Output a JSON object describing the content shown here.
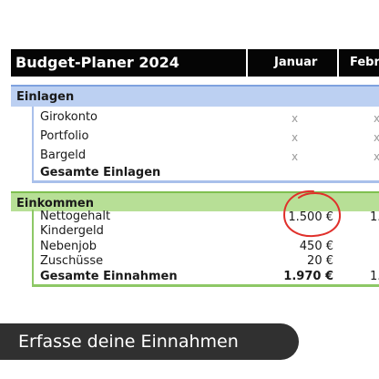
{
  "header": {
    "title": "Budget-Planer 2024",
    "months": [
      "Januar",
      "Febr"
    ]
  },
  "einlagen": {
    "label": "Einlagen",
    "rows": [
      {
        "label": "Girokonto",
        "january": "x",
        "february": "x"
      },
      {
        "label": "Portfolio",
        "january": "x",
        "february": "x"
      },
      {
        "label": "Bargeld",
        "january": "x",
        "february": "x"
      }
    ],
    "total_label": "Gesamte Einlagen"
  },
  "einkommen": {
    "label": "Einkommen",
    "rows": [
      {
        "label": "Nettogehalt",
        "january": "1.500 €",
        "february": "1."
      },
      {
        "label": "Kindergeld",
        "january": "",
        "february": ""
      },
      {
        "label": "Nebenjob",
        "january": "450 €",
        "february": ""
      },
      {
        "label": "Zuschüsse",
        "january": "20 €",
        "february": ""
      }
    ],
    "total_label": "Gesamte Einnahmen",
    "total_january": "1.970 €",
    "total_february": "1."
  },
  "banner": {
    "text": "Erfasse deine Einnahmen"
  },
  "colors": {
    "header_bg": "#050505",
    "einlagen_bg": "#bcd0f2",
    "einkommen_bg": "#b7df96",
    "highlight_circle": "#e0302b",
    "banner_bg": "#303030"
  }
}
